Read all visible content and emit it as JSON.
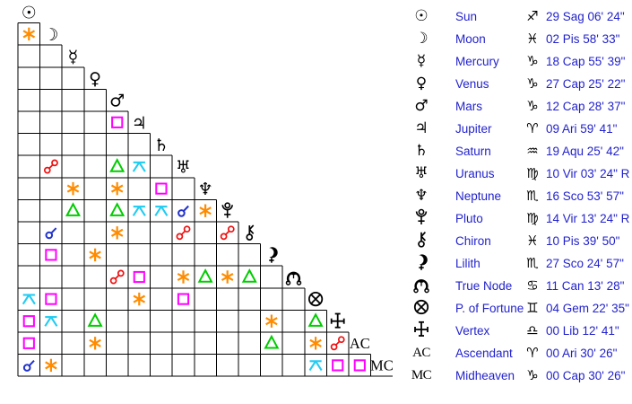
{
  "colors": {
    "conjunction": "#2233cc",
    "opposition": "#ee1111",
    "sextile": "#ff8c00",
    "square": "#ff00ff",
    "trine": "#00cc00",
    "quincunx": "#22ccf2",
    "grid_line": "#000000",
    "glyph": "#000000",
    "table_text": "#2222cc"
  },
  "aspect_grid": {
    "points": [
      {
        "id": "sun",
        "kind": "text",
        "glyph": "☉"
      },
      {
        "id": "moon",
        "kind": "text",
        "glyph": "☽"
      },
      {
        "id": "mercury",
        "kind": "text",
        "glyph": "☿"
      },
      {
        "id": "venus",
        "kind": "text",
        "glyph": "♀"
      },
      {
        "id": "mars",
        "kind": "text",
        "glyph": "♂"
      },
      {
        "id": "jupiter",
        "kind": "text",
        "glyph": "♃"
      },
      {
        "id": "saturn",
        "kind": "text",
        "glyph": "♄"
      },
      {
        "id": "uranus",
        "kind": "text",
        "glyph": "♅"
      },
      {
        "id": "neptune",
        "kind": "text",
        "glyph": "♆"
      },
      {
        "id": "pluto",
        "kind": "svg",
        "glyph": "pluto"
      },
      {
        "id": "chiron",
        "kind": "svg",
        "glyph": "chiron"
      },
      {
        "id": "lilith",
        "kind": "svg",
        "glyph": "lilith"
      },
      {
        "id": "true-node",
        "kind": "svg",
        "glyph": "node"
      },
      {
        "id": "fortune",
        "kind": "svg",
        "glyph": "fortune"
      },
      {
        "id": "vertex",
        "kind": "svg",
        "glyph": "vertex"
      },
      {
        "id": "ascendant",
        "kind": "label",
        "glyph": "AC"
      },
      {
        "id": "midheaven",
        "kind": "label",
        "glyph": "MC"
      }
    ],
    "aspects": [
      {
        "row": 1,
        "col": 0,
        "type": "sextile"
      },
      {
        "row": 5,
        "col": 4,
        "type": "square"
      },
      {
        "row": 7,
        "col": 1,
        "type": "opposition"
      },
      {
        "row": 7,
        "col": 4,
        "type": "trine"
      },
      {
        "row": 7,
        "col": 5,
        "type": "quincunx"
      },
      {
        "row": 8,
        "col": 2,
        "type": "sextile"
      },
      {
        "row": 8,
        "col": 4,
        "type": "sextile"
      },
      {
        "row": 8,
        "col": 6,
        "type": "square"
      },
      {
        "row": 9,
        "col": 2,
        "type": "trine"
      },
      {
        "row": 9,
        "col": 4,
        "type": "trine"
      },
      {
        "row": 9,
        "col": 5,
        "type": "quincunx"
      },
      {
        "row": 9,
        "col": 6,
        "type": "quincunx"
      },
      {
        "row": 9,
        "col": 7,
        "type": "conjunction"
      },
      {
        "row": 9,
        "col": 8,
        "type": "sextile"
      },
      {
        "row": 10,
        "col": 1,
        "type": "conjunction"
      },
      {
        "row": 10,
        "col": 4,
        "type": "sextile"
      },
      {
        "row": 10,
        "col": 7,
        "type": "opposition"
      },
      {
        "row": 10,
        "col": 9,
        "type": "opposition"
      },
      {
        "row": 11,
        "col": 1,
        "type": "square"
      },
      {
        "row": 11,
        "col": 3,
        "type": "sextile"
      },
      {
        "row": 12,
        "col": 4,
        "type": "opposition"
      },
      {
        "row": 12,
        "col": 5,
        "type": "square"
      },
      {
        "row": 12,
        "col": 7,
        "type": "sextile"
      },
      {
        "row": 12,
        "col": 8,
        "type": "trine"
      },
      {
        "row": 12,
        "col": 9,
        "type": "sextile"
      },
      {
        "row": 12,
        "col": 10,
        "type": "trine"
      },
      {
        "row": 13,
        "col": 0,
        "type": "quincunx"
      },
      {
        "row": 13,
        "col": 1,
        "type": "square"
      },
      {
        "row": 13,
        "col": 5,
        "type": "sextile"
      },
      {
        "row": 13,
        "col": 7,
        "type": "square"
      },
      {
        "row": 14,
        "col": 0,
        "type": "square"
      },
      {
        "row": 14,
        "col": 1,
        "type": "quincunx"
      },
      {
        "row": 14,
        "col": 3,
        "type": "trine"
      },
      {
        "row": 14,
        "col": 11,
        "type": "sextile"
      },
      {
        "row": 14,
        "col": 13,
        "type": "trine"
      },
      {
        "row": 15,
        "col": 0,
        "type": "square"
      },
      {
        "row": 15,
        "col": 3,
        "type": "sextile"
      },
      {
        "row": 15,
        "col": 11,
        "type": "trine"
      },
      {
        "row": 15,
        "col": 13,
        "type": "sextile"
      },
      {
        "row": 15,
        "col": 14,
        "type": "opposition"
      },
      {
        "row": 16,
        "col": 0,
        "type": "conjunction"
      },
      {
        "row": 16,
        "col": 1,
        "type": "sextile"
      },
      {
        "row": 16,
        "col": 13,
        "type": "quincunx"
      },
      {
        "row": 16,
        "col": 14,
        "type": "square"
      },
      {
        "row": 16,
        "col": 15,
        "type": "square"
      }
    ]
  },
  "positions_table": {
    "rows": [
      {
        "name": "Sun",
        "glyph_kind": "text",
        "glyph": "☉",
        "sign": "♐",
        "position": "29 Sag 06' 24\""
      },
      {
        "name": "Moon",
        "glyph_kind": "text",
        "glyph": "☽",
        "sign": "♓",
        "position": "02 Pis 58' 33\""
      },
      {
        "name": "Mercury",
        "glyph_kind": "text",
        "glyph": "☿",
        "sign": "♑",
        "position": "18 Cap 55' 39\""
      },
      {
        "name": "Venus",
        "glyph_kind": "text",
        "glyph": "♀",
        "sign": "♑",
        "position": "27 Cap 25' 22\""
      },
      {
        "name": "Mars",
        "glyph_kind": "text",
        "glyph": "♂",
        "sign": "♑",
        "position": "12 Cap 28' 37\""
      },
      {
        "name": "Jupiter",
        "glyph_kind": "text",
        "glyph": "♃",
        "sign": "♈",
        "position": "09 Ari 59' 41\""
      },
      {
        "name": "Saturn",
        "glyph_kind": "text",
        "glyph": "♄",
        "sign": "♒",
        "position": "19 Aqu 25' 42\""
      },
      {
        "name": "Uranus",
        "glyph_kind": "text",
        "glyph": "♅",
        "sign": "♍",
        "position": "10 Vir 03' 24\" R"
      },
      {
        "name": "Neptune",
        "glyph_kind": "text",
        "glyph": "♆",
        "sign": "♏",
        "position": "16 Sco 53' 57\""
      },
      {
        "name": "Pluto",
        "glyph_kind": "svg",
        "glyph": "pluto",
        "sign": "♍",
        "position": "14 Vir 13' 24\" R"
      },
      {
        "name": "Chiron",
        "glyph_kind": "svg",
        "glyph": "chiron",
        "sign": "♓",
        "position": "10 Pis 39' 50\""
      },
      {
        "name": "Lilith",
        "glyph_kind": "svg",
        "glyph": "lilith",
        "sign": "♏",
        "position": "27 Sco 24' 57\""
      },
      {
        "name": "True Node",
        "glyph_kind": "svg",
        "glyph": "node",
        "sign": "♋",
        "position": "11 Can 13' 28\""
      },
      {
        "name": "P. of Fortune",
        "glyph_kind": "svg",
        "glyph": "fortune",
        "sign": "♊",
        "position": "04 Gem 22' 35\""
      },
      {
        "name": "Vertex",
        "glyph_kind": "svg",
        "glyph": "vertex",
        "sign": "♎",
        "position": "00 Lib 12' 41\""
      },
      {
        "name": "Ascendant",
        "glyph_kind": "label",
        "glyph": "AC",
        "sign": "♈",
        "position": "00 Ari 30' 26\""
      },
      {
        "name": "Midheaven",
        "glyph_kind": "label",
        "glyph": "MC",
        "sign": "♑",
        "position": "00 Cap 30' 26\""
      }
    ]
  }
}
